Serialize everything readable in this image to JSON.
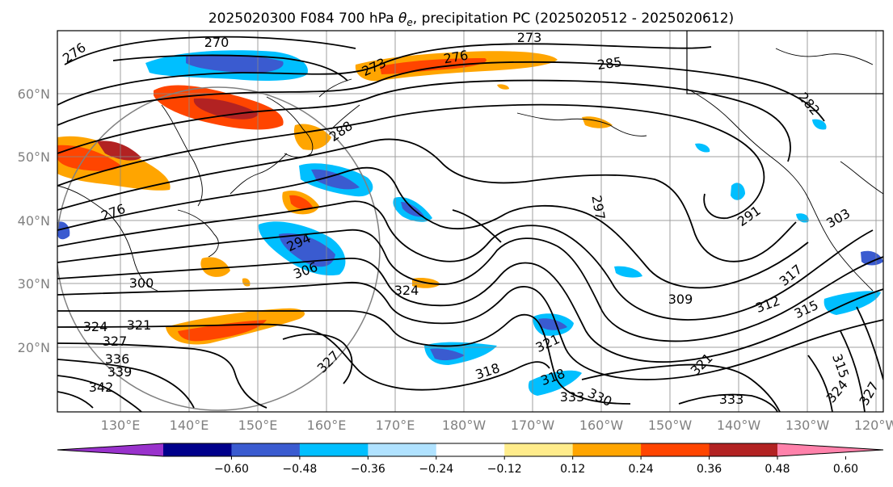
{
  "title": {
    "prefix": "2025020300 F084 700 hPa ",
    "symbol": "θ",
    "subscript": "e",
    "suffix": ", precipitation PC (2025020512 - 2025020612)"
  },
  "lat_labels": [
    "60°N",
    "50°N",
    "40°N",
    "30°N",
    "20°N"
  ],
  "lon_labels": [
    "130°E",
    "140°E",
    "150°E",
    "160°E",
    "170°E",
    "180°W",
    "170°W",
    "160°W",
    "150°W",
    "140°W",
    "130°W",
    "120°W"
  ],
  "colorbar": {
    "ticks": [
      "−0.60",
      "−0.48",
      "−0.36",
      "−0.24",
      "−0.12",
      "0.12",
      "0.24",
      "0.36",
      "0.48",
      "0.60"
    ],
    "colors": [
      "#9932cc",
      "#00008b",
      "#3a5bd0",
      "#00bfff",
      "#b0e2ff",
      "#ffffff",
      "#ffec8b",
      "#ffa500",
      "#ff4500",
      "#b22222",
      "#ff82ab"
    ]
  },
  "contour_labels": [
    "270",
    "276",
    "273",
    "276",
    "273",
    "285",
    "282",
    "288",
    "297",
    "291",
    "303",
    "294",
    "306",
    "300",
    "324",
    "309",
    "312",
    "315",
    "317",
    "321",
    "324",
    "327",
    "327",
    "318",
    "321",
    "333",
    "330",
    "318",
    "333",
    "324",
    "327",
    "336",
    "339",
    "342",
    "321",
    "315",
    "276"
  ]
}
